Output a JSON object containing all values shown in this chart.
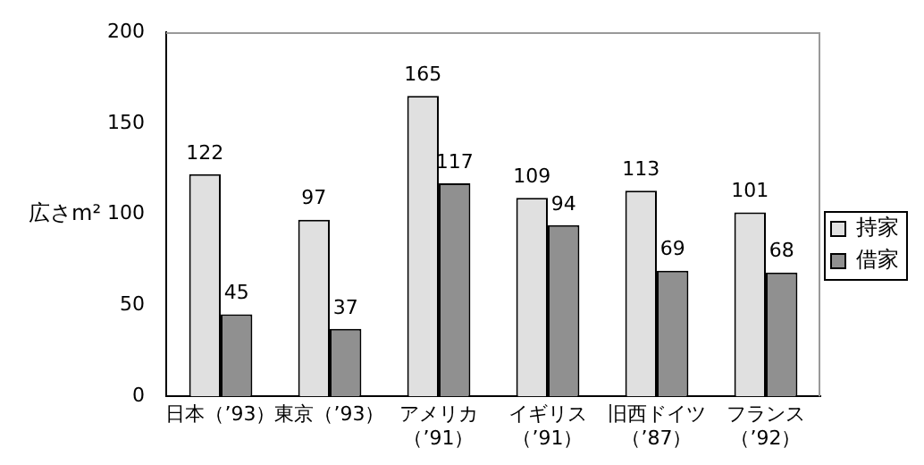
{
  "chart_data": {
    "type": "bar",
    "ylabel": "広さm²",
    "categories": [
      "日本（’93）",
      "東京（’93）",
      "アメリカ（’91）",
      "イギリス（’91）",
      "旧西ドイツ（’87）",
      "フランス（’92）"
    ],
    "series": [
      {
        "name": "持家",
        "color": "#e0e0e0",
        "values": [
          122,
          97,
          165,
          109,
          113,
          101
        ]
      },
      {
        "name": "借家",
        "color": "#909090",
        "values": [
          45,
          37,
          117,
          94,
          69,
          68
        ]
      }
    ],
    "ylim": [
      0,
      200
    ],
    "yticks": [
      0,
      50,
      100,
      150,
      200
    ],
    "grid": false,
    "legend": "right",
    "data_labels": true
  }
}
